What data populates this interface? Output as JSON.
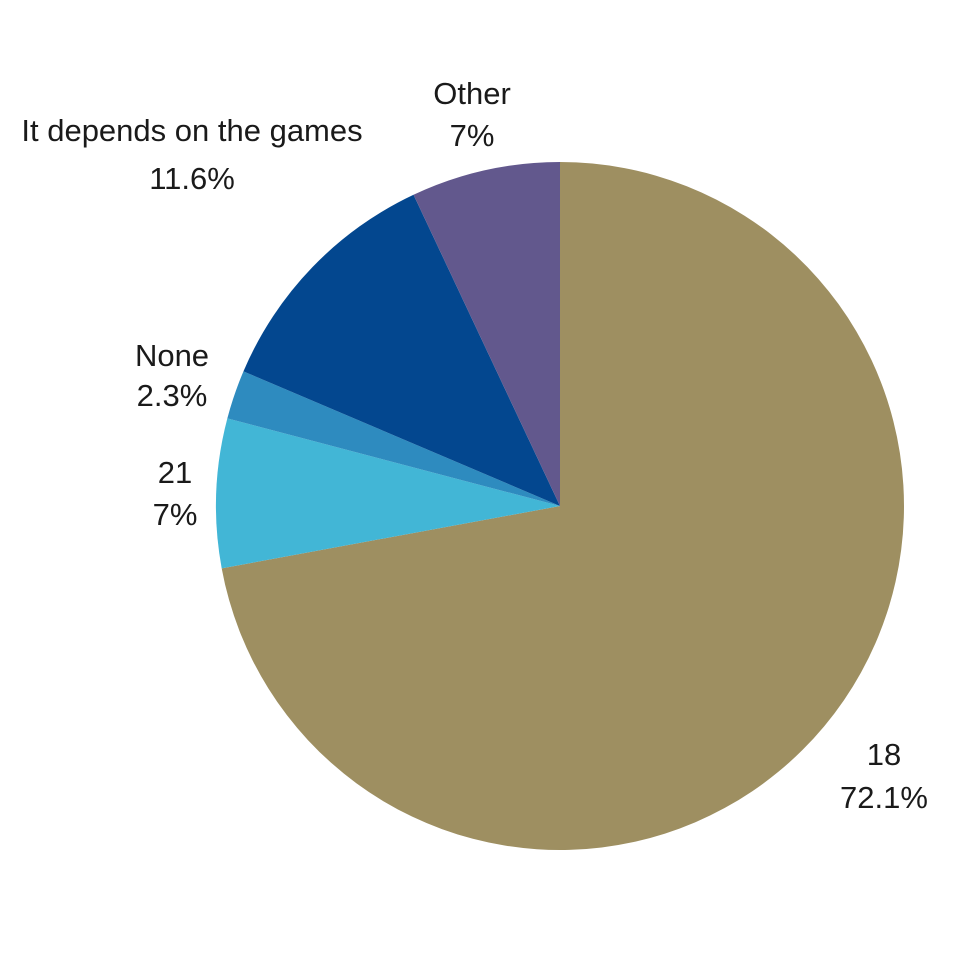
{
  "chart_data": {
    "type": "pie",
    "title": "",
    "start_angle_deg": 0,
    "direction": "clockwise",
    "slices": [
      {
        "name": "18",
        "value": 72.1,
        "value_label": "72.1%",
        "color": "#9e8f61"
      },
      {
        "name": "21",
        "value": 7.0,
        "value_label": "7%",
        "color": "#42b6d6"
      },
      {
        "name": "None",
        "value": 2.3,
        "value_label": "2.3%",
        "color": "#2e8bbf"
      },
      {
        "name": "It depends on the games",
        "value": 11.6,
        "value_label": "11.6%",
        "color": "#03478f"
      },
      {
        "name": "Other",
        "value": 7.0,
        "value_label": "7%",
        "color": "#62588d"
      }
    ]
  }
}
